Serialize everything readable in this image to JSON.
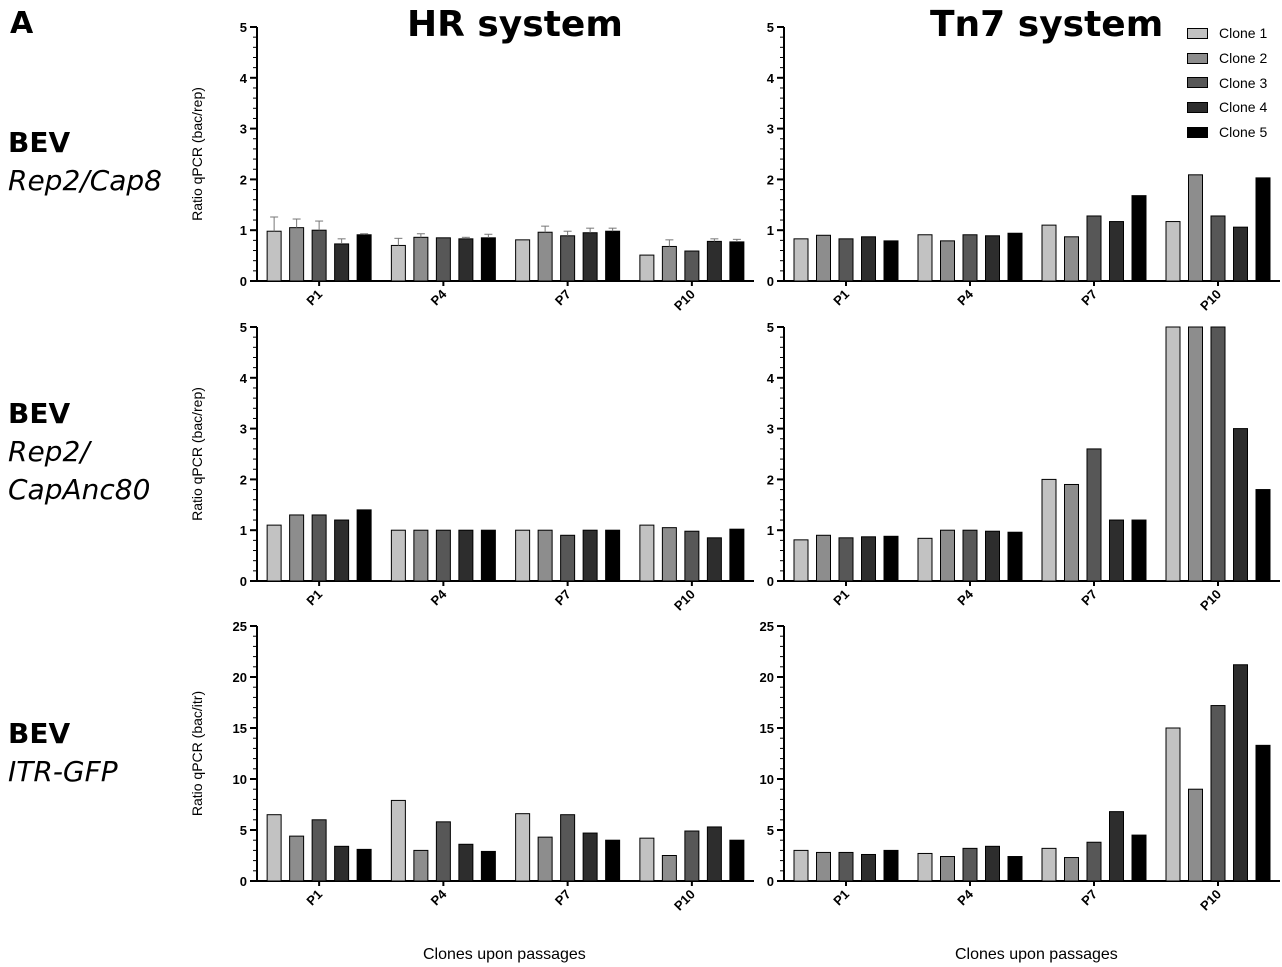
{
  "figure": {
    "panel_letter": "A",
    "columns": [
      "HR system",
      "Tn7 system"
    ],
    "rows": [
      {
        "bev": "BEV",
        "construct_lines": [
          "Rep2/Cap8"
        ]
      },
      {
        "bev": "BEV",
        "construct_lines": [
          "Rep2/",
          "CapAnc80"
        ]
      },
      {
        "bev": "BEV",
        "construct_lines": [
          "ITR-GFP"
        ]
      }
    ],
    "xlabel": "Clones upon passages"
  },
  "legend": [
    {
      "label": "Clone 1",
      "color": "#c2c2c2"
    },
    {
      "label": "Clone 2",
      "color": "#8d8d8d"
    },
    {
      "label": "Clone 3",
      "color": "#575757"
    },
    {
      "label": "Clone 4",
      "color": "#2d2d2d"
    },
    {
      "label": "Clone 5",
      "color": "#000000"
    }
  ],
  "chart_data": [
    {
      "id": "hr-rep2cap8",
      "type": "bar",
      "system": "HR system",
      "construct": "Rep2/Cap8",
      "categories": [
        "P1",
        "P4",
        "P7",
        "P10"
      ],
      "ylabel": "Ratio qPCR (bac/rep)",
      "ylim": [
        0,
        5
      ],
      "yticks": [
        0,
        1,
        2,
        3,
        4,
        5
      ],
      "error_bars": true,
      "series": [
        {
          "name": "Clone 1",
          "values": [
            0.98,
            0.7,
            0.81,
            0.51
          ],
          "errors": [
            0.28,
            0.14,
            0.0,
            0.0
          ]
        },
        {
          "name": "Clone 2",
          "values": [
            1.05,
            0.86,
            0.96,
            0.68
          ],
          "errors": [
            0.17,
            0.07,
            0.12,
            0.13
          ]
        },
        {
          "name": "Clone 3",
          "values": [
            1.0,
            0.85,
            0.89,
            0.59
          ],
          "errors": [
            0.18,
            0.0,
            0.09,
            0.0
          ]
        },
        {
          "name": "Clone 4",
          "values": [
            0.73,
            0.83,
            0.95,
            0.78
          ],
          "errors": [
            0.1,
            0.03,
            0.09,
            0.05
          ]
        },
        {
          "name": "Clone 5",
          "values": [
            0.91,
            0.85,
            0.98,
            0.77
          ],
          "errors": [
            0.02,
            0.07,
            0.06,
            0.05
          ]
        }
      ]
    },
    {
      "id": "tn7-rep2cap8",
      "type": "bar",
      "system": "Tn7 system",
      "construct": "Rep2/Cap8",
      "categories": [
        "P1",
        "P4",
        "P7",
        "P10"
      ],
      "ylabel": "",
      "ylim": [
        0,
        5
      ],
      "yticks": [
        0,
        1,
        2,
        3,
        4,
        5
      ],
      "error_bars": false,
      "series": [
        {
          "name": "Clone 1",
          "values": [
            0.83,
            0.91,
            1.1,
            1.17
          ]
        },
        {
          "name": "Clone 2",
          "values": [
            0.9,
            0.79,
            0.87,
            2.09
          ]
        },
        {
          "name": "Clone 3",
          "values": [
            0.83,
            0.91,
            1.28,
            1.28
          ]
        },
        {
          "name": "Clone 4",
          "values": [
            0.87,
            0.89,
            1.17,
            1.06
          ]
        },
        {
          "name": "Clone 5",
          "values": [
            0.79,
            0.94,
            1.68,
            2.03
          ]
        }
      ]
    },
    {
      "id": "hr-rep2capanc80",
      "type": "bar",
      "system": "HR system",
      "construct": "Rep2/CapAnc80",
      "categories": [
        "P1",
        "P4",
        "P7",
        "P10"
      ],
      "ylabel": "Ratio qPCR (bac/rep)",
      "ylim": [
        0,
        5
      ],
      "yticks": [
        0,
        1,
        2,
        3,
        4,
        5
      ],
      "error_bars": false,
      "series": [
        {
          "name": "Clone 1",
          "values": [
            1.1,
            1.0,
            1.0,
            1.1
          ]
        },
        {
          "name": "Clone 2",
          "values": [
            1.3,
            1.0,
            1.0,
            1.05
          ]
        },
        {
          "name": "Clone 3",
          "values": [
            1.3,
            1.0,
            0.9,
            0.98
          ]
        },
        {
          "name": "Clone 4",
          "values": [
            1.2,
            1.0,
            1.0,
            0.85
          ]
        },
        {
          "name": "Clone 5",
          "values": [
            1.4,
            1.0,
            1.0,
            1.02
          ]
        }
      ]
    },
    {
      "id": "tn7-rep2capanc80",
      "type": "bar",
      "system": "Tn7 system",
      "construct": "Rep2/CapAnc80",
      "categories": [
        "P1",
        "P4",
        "P7",
        "P10"
      ],
      "ylabel": "",
      "ylim": [
        0,
        5
      ],
      "yticks": [
        0,
        1,
        2,
        3,
        4,
        5
      ],
      "error_bars": false,
      "series": [
        {
          "name": "Clone 1",
          "values": [
            0.81,
            0.84,
            2.0,
            5.0
          ]
        },
        {
          "name": "Clone 2",
          "values": [
            0.9,
            1.0,
            1.9,
            5.0
          ]
        },
        {
          "name": "Clone 3",
          "values": [
            0.85,
            1.0,
            2.6,
            5.0
          ]
        },
        {
          "name": "Clone 4",
          "values": [
            0.87,
            0.98,
            1.2,
            3.0
          ]
        },
        {
          "name": "Clone 5",
          "values": [
            0.88,
            0.96,
            1.2,
            1.8
          ]
        }
      ]
    },
    {
      "id": "hr-itrgfp",
      "type": "bar",
      "system": "HR system",
      "construct": "ITR-GFP",
      "categories": [
        "P1",
        "P4",
        "P7",
        "P10"
      ],
      "ylabel": "Ratio qPCR (bac/itr)",
      "ylim": [
        0,
        25
      ],
      "yticks": [
        0,
        5,
        10,
        15,
        20,
        25
      ],
      "error_bars": false,
      "series": [
        {
          "name": "Clone 1",
          "values": [
            6.5,
            7.9,
            6.6,
            4.2
          ]
        },
        {
          "name": "Clone 2",
          "values": [
            4.4,
            3.0,
            4.3,
            2.5
          ]
        },
        {
          "name": "Clone 3",
          "values": [
            6.0,
            5.8,
            6.5,
            4.9
          ]
        },
        {
          "name": "Clone 4",
          "values": [
            3.4,
            3.6,
            4.7,
            5.3
          ]
        },
        {
          "name": "Clone 5",
          "values": [
            3.1,
            2.9,
            4.0,
            4.0
          ]
        }
      ]
    },
    {
      "id": "tn7-itrgfp",
      "type": "bar",
      "system": "Tn7 system",
      "construct": "ITR-GFP",
      "categories": [
        "P1",
        "P4",
        "P7",
        "P10"
      ],
      "ylabel": "",
      "ylim": [
        0,
        25
      ],
      "yticks": [
        0,
        5,
        10,
        15,
        20,
        25
      ],
      "error_bars": false,
      "series": [
        {
          "name": "Clone 1",
          "values": [
            3.0,
            2.7,
            3.2,
            15.0
          ]
        },
        {
          "name": "Clone 2",
          "values": [
            2.8,
            2.4,
            2.3,
            9.0
          ]
        },
        {
          "name": "Clone 3",
          "values": [
            2.8,
            3.2,
            3.8,
            17.2
          ]
        },
        {
          "name": "Clone 4",
          "values": [
            2.6,
            3.4,
            6.8,
            21.2
          ]
        },
        {
          "name": "Clone 5",
          "values": [
            3.0,
            2.4,
            4.5,
            13.3
          ]
        }
      ]
    }
  ]
}
